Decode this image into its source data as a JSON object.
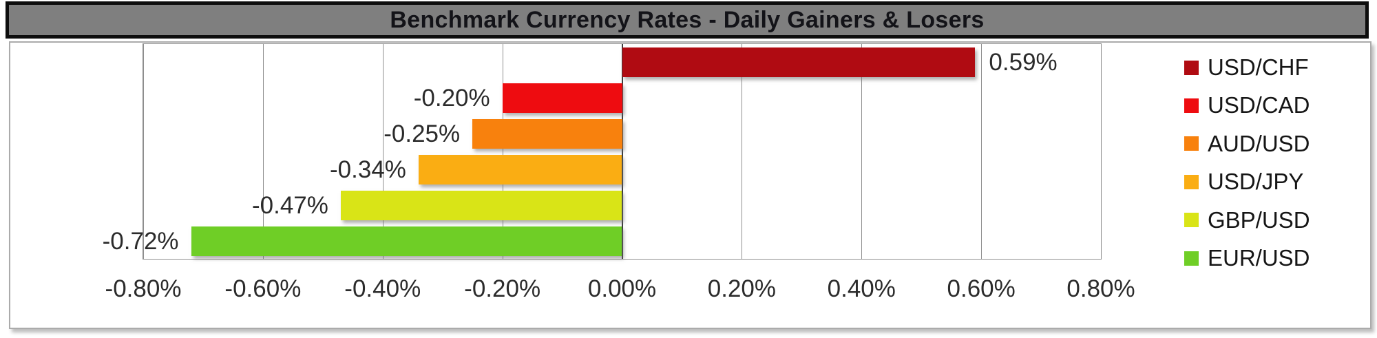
{
  "chart_data": {
    "type": "bar",
    "orientation": "horizontal",
    "title": "Benchmark Currency Rates - Daily Gainers & Losers",
    "categories": [
      "USD/CHF",
      "USD/CAD",
      "AUD/USD",
      "USD/JPY",
      "GBP/USD",
      "EUR/USD"
    ],
    "values": [
      0.59,
      -0.2,
      -0.25,
      -0.34,
      -0.47,
      -0.72
    ],
    "value_labels": [
      "0.59%",
      "-0.20%",
      "-0.25%",
      "-0.34%",
      "-0.47%",
      "-0.72%"
    ],
    "bar_colors": [
      "#B00B12",
      "#EE0C10",
      "#F8810D",
      "#FAAD13",
      "#D9E417",
      "#6FCE26"
    ],
    "xlabel": "",
    "ylabel": "",
    "unit": "percent",
    "xlim": [
      -0.8,
      0.8
    ],
    "x_tick_values": [
      -0.8,
      -0.6,
      -0.4,
      -0.2,
      0.0,
      0.2,
      0.4,
      0.6,
      0.8
    ],
    "x_tick_labels": [
      "-0.80%",
      "-0.60%",
      "-0.40%",
      "-0.20%",
      "0.00%",
      "0.20%",
      "0.40%",
      "0.60%",
      "0.80%"
    ],
    "grid": "vertical gridlines on",
    "legend_position": "right"
  },
  "colors": {
    "title_bar_bg": "#7F7F7F",
    "title_text": "#131318",
    "axis_text": "#2B2B2B",
    "gridline": "#8E8E8E",
    "zero_line": "#3D3D3D",
    "chart_border": "#ABABAB"
  }
}
